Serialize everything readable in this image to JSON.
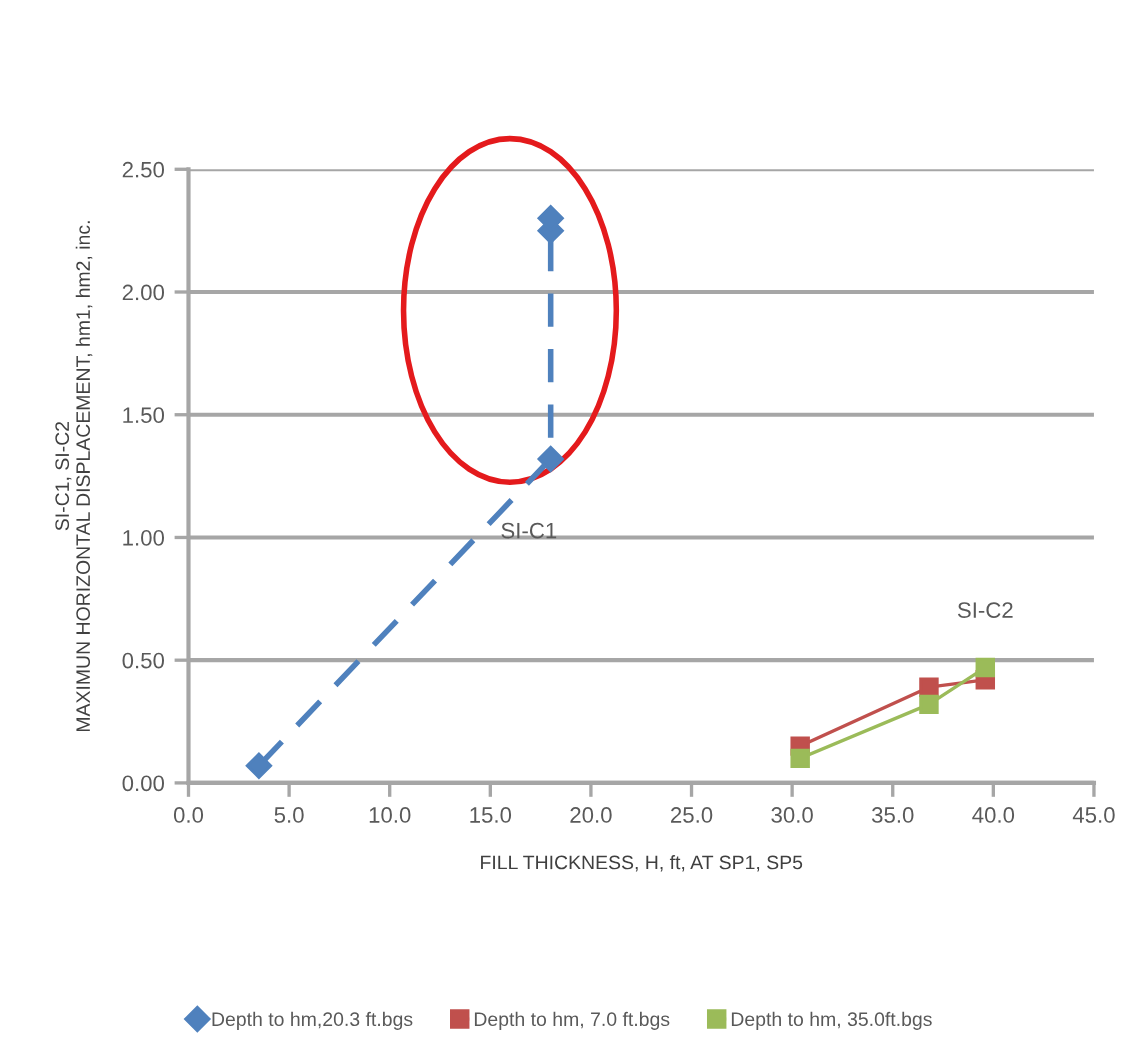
{
  "chart_data": {
    "type": "line",
    "xlabel": "FILL THICKNESS, H, ft, AT SP1, SP5",
    "ylabel": "SI-C1, SI-C2\nMAXIMUN HORIZONTAL DISPLACEMENT, hm1, hm2, inc.",
    "series": [
      {
        "name": "Depth to hm,20.3 ft.bgs",
        "color": "#4f81bd",
        "marker": "diamond",
        "line_style": "dashed",
        "x": [
          3.5,
          18.0,
          18.0,
          18.0
        ],
        "values": [
          0.07,
          1.32,
          2.25,
          2.3
        ]
      },
      {
        "name": "Depth to hm, 7.0 ft.bgs",
        "color": "#c0504d",
        "marker": "square",
        "line_style": "solid",
        "x": [
          30.4,
          36.8,
          39.6
        ],
        "values": [
          0.15,
          0.39,
          0.42
        ]
      },
      {
        "name": "Depth to hm, 35.0ft.bgs",
        "color": "#9bbb59",
        "marker": "square",
        "line_style": "solid",
        "x": [
          30.4,
          36.8,
          39.6
        ],
        "values": [
          0.1,
          0.32,
          0.47
        ]
      }
    ],
    "xlim": [
      0,
      45
    ],
    "ylim": [
      0,
      2.5
    ],
    "xticks": [
      {
        "value": 0,
        "label": "0.0"
      },
      {
        "value": 5,
        "label": "5.0"
      },
      {
        "value": 10,
        "label": "10.0"
      },
      {
        "value": 15,
        "label": "15.0"
      },
      {
        "value": 20,
        "label": "20.0"
      },
      {
        "value": 25,
        "label": "25.0"
      },
      {
        "value": 30,
        "label": "30.0"
      },
      {
        "value": 35,
        "label": "35.0"
      },
      {
        "value": 40,
        "label": "40.0"
      },
      {
        "value": 45,
        "label": "45.0"
      }
    ],
    "yticks": [
      {
        "value": 0,
        "label": "0.00"
      },
      {
        "value": 0.5,
        "label": "0.50"
      },
      {
        "value": 1,
        "label": "1.00"
      },
      {
        "value": 1.5,
        "label": "1.50"
      },
      {
        "value": 2,
        "label": "2.00"
      },
      {
        "value": 2.5,
        "label": "2.50"
      }
    ],
    "annotations": [
      {
        "text": "SI-C1",
        "x": 16.5,
        "y": 1.19
      },
      {
        "text": "SI-C2",
        "x": 39.6,
        "y": 0.47
      }
    ],
    "grid": "y",
    "legend": "bottom"
  }
}
